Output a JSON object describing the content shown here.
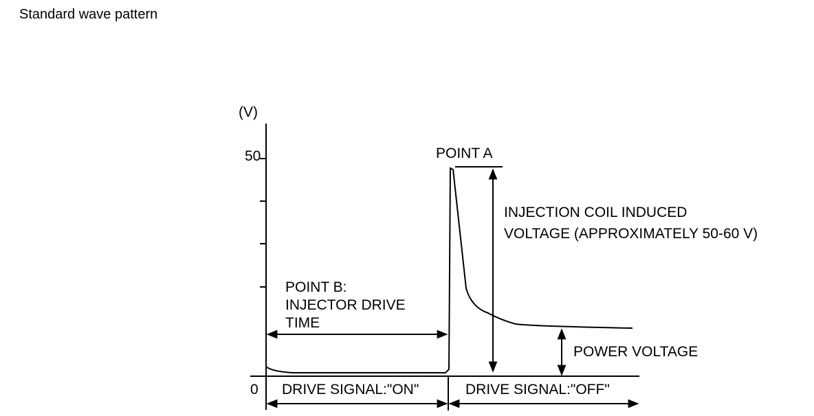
{
  "header": {
    "title": "Standard wave pattern"
  },
  "diagram": {
    "axis_unit": "(V)",
    "tick_top": "50",
    "tick_zero": "0",
    "point_a": "POINT A",
    "induced_voltage": [
      "INJECTION COIL INDUCED",
      "VOLTAGE (APPROXIMATELY 50-60 V)"
    ],
    "point_b": [
      "POINT B:",
      "INJECTOR DRIVE",
      "TIME"
    ],
    "power_voltage": "POWER VOLTAGE",
    "signal_on": "DRIVE SIGNAL:\"ON\"",
    "signal_off": "DRIVE SIGNAL:\"OFF\""
  }
}
